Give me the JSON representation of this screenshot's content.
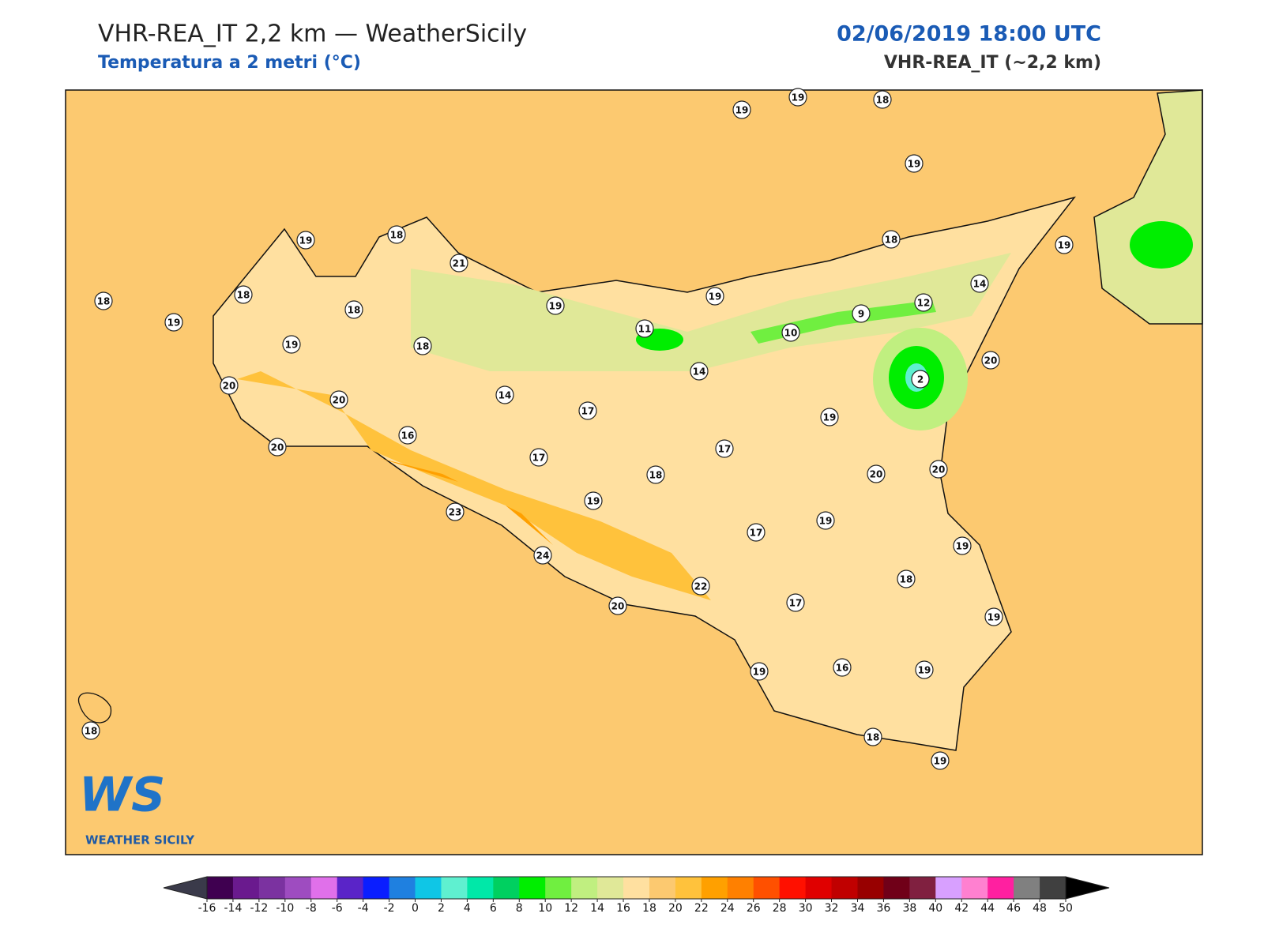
{
  "header": {
    "title": "VHR-REA_IT 2,2 km — WeatherSicily",
    "subtitle": "Temperatura a 2 metri (°C)",
    "datetime": "02/06/2019 18:00 UTC",
    "model": "VHR-REA_IT (~2,2 km)"
  },
  "stations": [
    19,
    19,
    18,
    19,
    19,
    18,
    21,
    18,
    18,
    19,
    18,
    19,
    19,
    18,
    19,
    14,
    12,
    9,
    10,
    11,
    19,
    18,
    14,
    2,
    20,
    20,
    20,
    14,
    17,
    19,
    16,
    20,
    17,
    17,
    18,
    20,
    20,
    19,
    23,
    19,
    17,
    19,
    24,
    22,
    18,
    17,
    20,
    19,
    19,
    16,
    19,
    18,
    18,
    19
  ],
  "logo": {
    "mark": "WS",
    "name": "WEATHER SICILY"
  },
  "colorbar": {
    "ticks": [
      -16,
      -14,
      -12,
      -10,
      -8,
      -6,
      -4,
      -2,
      0,
      2,
      4,
      6,
      8,
      10,
      12,
      14,
      16,
      18,
      20,
      22,
      24,
      26,
      28,
      30,
      32,
      34,
      36,
      38,
      40,
      42,
      44,
      46,
      48,
      50
    ],
    "colors": [
      "#3f0050",
      "#6a1a8e",
      "#7b32a0",
      "#9e4cc0",
      "#e070ea",
      "#5a24c8",
      "#0a1eff",
      "#1f80e0",
      "#0fc6e6",
      "#5ff0d0",
      "#00e8a8",
      "#00d060",
      "#00ee00",
      "#70ef40",
      "#c0ef80",
      "#e0e898",
      "#ffe0a0",
      "#fcc970",
      "#ffc23c",
      "#ffa000",
      "#ff8000",
      "#ff5000",
      "#ff1000",
      "#e00000",
      "#c00000",
      "#980000",
      "#700018",
      "#802040",
      "#d8a0ff",
      "#ff80d0",
      "#ff20a0",
      "#808080",
      "#404040"
    ],
    "under_color": "#3a3a4a",
    "over_color": "#000000"
  }
}
